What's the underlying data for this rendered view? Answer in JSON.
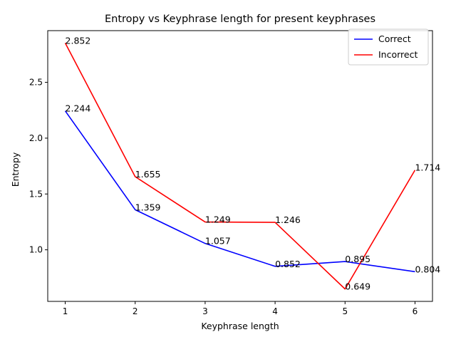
{
  "chart_data": {
    "type": "line",
    "title": "Entropy vs Keyphrase length for present keyphrases",
    "xlabel": "Keyphrase length",
    "ylabel": "Entropy",
    "x": [
      1,
      2,
      3,
      4,
      5,
      6
    ],
    "xlim": [
      0.75,
      6.25
    ],
    "ylim": [
      0.538,
      2.963
    ],
    "xticks": [
      1,
      2,
      3,
      4,
      5,
      6
    ],
    "yticks": [
      1.0,
      1.5,
      2.0,
      2.5
    ],
    "ytick_labels": [
      "1.0",
      "1.5",
      "2.0",
      "2.5"
    ],
    "grid": false,
    "legend_position": "upper right",
    "series": [
      {
        "name": "Correct",
        "color": "#0000ff",
        "values": [
          2.244,
          1.359,
          1.057,
          0.852,
          0.895,
          0.804
        ],
        "labels": [
          "2.244",
          "1.359",
          "1.057",
          "0.852",
          "0.895",
          "0.804"
        ]
      },
      {
        "name": "Incorrect",
        "color": "#ff0000",
        "values": [
          2.852,
          1.655,
          1.249,
          1.246,
          0.649,
          1.714
        ],
        "labels": [
          "2.852",
          "1.655",
          "1.249",
          "1.246",
          "0.649",
          "1.714"
        ]
      }
    ]
  }
}
